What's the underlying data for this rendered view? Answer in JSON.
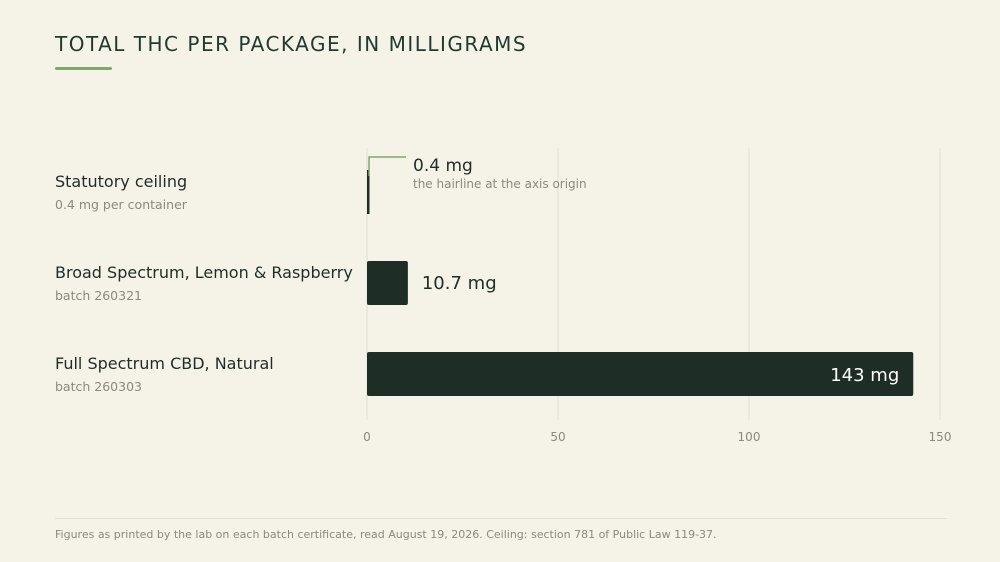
{
  "header": {
    "title": "TOTAL THC PER PACKAGE, IN MILLIGRAMS"
  },
  "rows": [
    {
      "name": "Statutory ceiling",
      "sub": "0.4 mg per container"
    },
    {
      "name": "Broad Spectrum, Lemon & Raspberry",
      "sub": "batch 260321"
    },
    {
      "name": "Full Spectrum CBD, Natural",
      "sub": "batch 260303"
    }
  ],
  "chart_data": {
    "type": "bar",
    "orientation": "horizontal",
    "categories": [
      "Statutory ceiling",
      "Broad Spectrum, Lemon & Raspberry",
      "Full Spectrum CBD, Natural"
    ],
    "values": [
      0.4,
      10.7,
      143
    ],
    "value_labels": [
      "0.4 mg",
      "10.7 mg",
      "143 mg"
    ],
    "unit": "mg",
    "xlim": [
      0,
      150
    ],
    "xticks": [
      0,
      50,
      100,
      150
    ],
    "grid": true,
    "annotation": {
      "value": "0.4 mg",
      "note": "the hairline at the axis origin"
    },
    "colors": {
      "bar": "#1f2d27",
      "annotation": "#7fa86b",
      "grid": "#e4dfd0"
    }
  },
  "footer": {
    "note": "Figures as printed by the lab on each batch certificate, read August 19, 2026. Ceiling: section 781 of Public Law 119-37."
  }
}
